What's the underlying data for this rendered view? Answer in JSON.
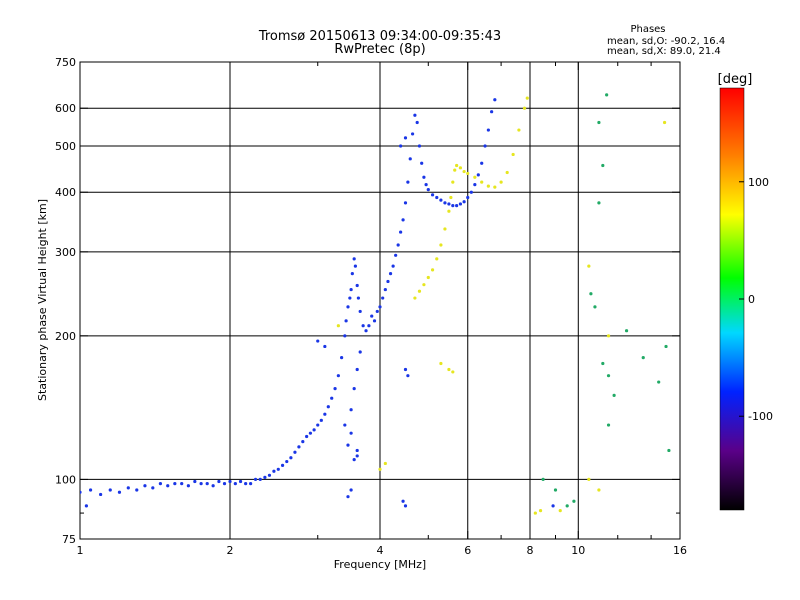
{
  "header": {
    "title_line1": "Tromsø 20150613 09:34:00-09:35:43",
    "title_line2": "RwPretec (8p)"
  },
  "phase_box": {
    "title": "Phases",
    "line_o": "mean, sd,O: -90.2, 16.4",
    "line_x": "mean, sd,X:  89.0, 21.4"
  },
  "colorbar": {
    "unit_label": "[deg]",
    "range": [
      -180,
      180
    ],
    "ticks": [
      {
        "value": 100,
        "label": "100"
      },
      {
        "value": 0,
        "label": "0"
      },
      {
        "value": -100,
        "label": "-100"
      }
    ],
    "colors": [
      "#000000",
      "#5a0088",
      "#0022ff",
      "#00d8ff",
      "#00ff00",
      "#ffff00",
      "#ff7f00",
      "#ff0000"
    ]
  },
  "chart_data": {
    "type": "scatter",
    "title": "Tromsø 20150613 09:34:00-09:35:43",
    "subtitle": "RwPretec (8p)",
    "xlabel": "Frequency [MHz]",
    "ylabel": "Stationary phase Virtual Height [km]",
    "x_scale": "log",
    "y_scale": "log",
    "xlim": [
      1,
      16
    ],
    "ylim": [
      75,
      750
    ],
    "x_ticks": [
      1,
      2,
      4,
      6,
      8,
      10,
      16
    ],
    "x_minor_ticks": [
      3,
      5,
      7,
      9,
      12,
      14
    ],
    "y_ticks": [
      75,
      100,
      200,
      300,
      400,
      500,
      600,
      750
    ],
    "y_minor_ticks": [
      85
    ],
    "grid": true,
    "legend": "colorbar-right",
    "series": [
      {
        "name": "O",
        "color": "#1a36e6",
        "points": [
          [
            1.0,
            94
          ],
          [
            1.03,
            88
          ],
          [
            1.05,
            95
          ],
          [
            1.1,
            93
          ],
          [
            1.15,
            95
          ],
          [
            1.2,
            94
          ],
          [
            1.25,
            96
          ],
          [
            1.3,
            95
          ],
          [
            1.35,
            97
          ],
          [
            1.4,
            96
          ],
          [
            1.45,
            98
          ],
          [
            1.5,
            97
          ],
          [
            1.55,
            98
          ],
          [
            1.6,
            98
          ],
          [
            1.65,
            97
          ],
          [
            1.7,
            99
          ],
          [
            1.75,
            98
          ],
          [
            1.8,
            98
          ],
          [
            1.85,
            97
          ],
          [
            1.9,
            99
          ],
          [
            1.95,
            98
          ],
          [
            2.0,
            99
          ],
          [
            2.05,
            98
          ],
          [
            2.1,
            99
          ],
          [
            2.15,
            98
          ],
          [
            2.2,
            98
          ],
          [
            2.25,
            100
          ],
          [
            2.3,
            100
          ],
          [
            2.35,
            101
          ],
          [
            2.4,
            102
          ],
          [
            2.45,
            104
          ],
          [
            2.5,
            105
          ],
          [
            2.55,
            107
          ],
          [
            2.6,
            109
          ],
          [
            2.65,
            111
          ],
          [
            2.7,
            114
          ],
          [
            2.75,
            117
          ],
          [
            2.8,
            120
          ],
          [
            2.85,
            123
          ],
          [
            2.9,
            125
          ],
          [
            2.95,
            127
          ],
          [
            3.0,
            130
          ],
          [
            3.05,
            133
          ],
          [
            3.1,
            137
          ],
          [
            3.15,
            142
          ],
          [
            3.2,
            148
          ],
          [
            3.25,
            155
          ],
          [
            3.3,
            165
          ],
          [
            3.35,
            180
          ],
          [
            3.4,
            200
          ],
          [
            3.42,
            215
          ],
          [
            3.45,
            230
          ],
          [
            3.48,
            240
          ],
          [
            3.5,
            250
          ],
          [
            3.52,
            270
          ],
          [
            3.55,
            290
          ],
          [
            3.57,
            280
          ],
          [
            3.6,
            255
          ],
          [
            3.62,
            240
          ],
          [
            3.65,
            225
          ],
          [
            3.7,
            210
          ],
          [
            3.75,
            205
          ],
          [
            3.8,
            210
          ],
          [
            3.85,
            220
          ],
          [
            3.9,
            215
          ],
          [
            3.95,
            225
          ],
          [
            4.0,
            230
          ],
          [
            4.05,
            240
          ],
          [
            4.1,
            250
          ],
          [
            4.15,
            260
          ],
          [
            4.2,
            270
          ],
          [
            4.25,
            280
          ],
          [
            4.3,
            295
          ],
          [
            4.35,
            310
          ],
          [
            4.4,
            330
          ],
          [
            4.45,
            350
          ],
          [
            4.5,
            380
          ],
          [
            4.55,
            420
          ],
          [
            4.6,
            470
          ],
          [
            4.65,
            530
          ],
          [
            4.7,
            580
          ],
          [
            4.75,
            560
          ],
          [
            4.8,
            500
          ],
          [
            4.85,
            460
          ],
          [
            4.9,
            430
          ],
          [
            4.95,
            415
          ],
          [
            5.0,
            405
          ],
          [
            5.1,
            395
          ],
          [
            5.2,
            390
          ],
          [
            5.3,
            385
          ],
          [
            5.4,
            380
          ],
          [
            5.5,
            378
          ],
          [
            5.6,
            375
          ],
          [
            5.7,
            375
          ],
          [
            5.8,
            378
          ],
          [
            5.9,
            382
          ],
          [
            6.0,
            390
          ],
          [
            6.1,
            400
          ],
          [
            6.2,
            415
          ],
          [
            6.3,
            435
          ],
          [
            6.4,
            460
          ],
          [
            6.5,
            500
          ],
          [
            6.6,
            540
          ],
          [
            6.7,
            590
          ],
          [
            6.8,
            625
          ],
          [
            3.5,
            140
          ],
          [
            3.55,
            155
          ],
          [
            3.6,
            170
          ],
          [
            3.65,
            185
          ],
          [
            3.5,
            125
          ],
          [
            3.45,
            118
          ],
          [
            3.4,
            130
          ],
          [
            3.6,
            115
          ],
          [
            3.0,
            195
          ],
          [
            3.1,
            190
          ],
          [
            4.5,
            170
          ],
          [
            4.55,
            165
          ],
          [
            4.4,
            500
          ],
          [
            4.5,
            520
          ],
          [
            3.55,
            110
          ],
          [
            3.6,
            112
          ],
          [
            4.45,
            90
          ],
          [
            4.5,
            88
          ],
          [
            3.45,
            92
          ],
          [
            3.5,
            95
          ],
          [
            8.9,
            88
          ]
        ]
      },
      {
        "name": "X",
        "color": "#e6e620",
        "points": [
          [
            4.7,
            240
          ],
          [
            4.8,
            248
          ],
          [
            4.9,
            256
          ],
          [
            5.0,
            265
          ],
          [
            5.1,
            275
          ],
          [
            5.2,
            290
          ],
          [
            5.3,
            310
          ],
          [
            5.4,
            335
          ],
          [
            5.5,
            365
          ],
          [
            5.55,
            390
          ],
          [
            5.6,
            420
          ],
          [
            5.65,
            445
          ],
          [
            5.7,
            455
          ],
          [
            5.8,
            450
          ],
          [
            5.9,
            442
          ],
          [
            6.0,
            438
          ],
          [
            6.2,
            430
          ],
          [
            6.4,
            420
          ],
          [
            6.6,
            412
          ],
          [
            6.8,
            410
          ],
          [
            7.0,
            420
          ],
          [
            7.2,
            440
          ],
          [
            7.4,
            480
          ],
          [
            7.6,
            540
          ],
          [
            7.8,
            600
          ],
          [
            7.9,
            630
          ],
          [
            3.3,
            210
          ],
          [
            4.0,
            105
          ],
          [
            4.1,
            108
          ],
          [
            5.3,
            175
          ],
          [
            5.5,
            170
          ],
          [
            5.6,
            168
          ],
          [
            8.2,
            85
          ],
          [
            8.4,
            86
          ],
          [
            9.2,
            86
          ],
          [
            10.5,
            280
          ],
          [
            10.5,
            100
          ],
          [
            11.0,
            95
          ],
          [
            11.5,
            200
          ],
          [
            14.9,
            560
          ]
        ]
      },
      {
        "name": "scatter",
        "color": "#22aa66",
        "points": [
          [
            11.0,
            560
          ],
          [
            11.2,
            455
          ],
          [
            11.0,
            380
          ],
          [
            10.6,
            245
          ],
          [
            10.8,
            230
          ],
          [
            11.2,
            175
          ],
          [
            11.5,
            165
          ],
          [
            11.8,
            150
          ],
          [
            11.5,
            130
          ],
          [
            12.5,
            205
          ],
          [
            13.5,
            180
          ],
          [
            14.5,
            160
          ],
          [
            15.0,
            190
          ],
          [
            15.2,
            115
          ],
          [
            11.4,
            640
          ],
          [
            8.5,
            100
          ],
          [
            9.0,
            95
          ],
          [
            9.5,
            88
          ],
          [
            9.8,
            90
          ]
        ]
      }
    ]
  }
}
